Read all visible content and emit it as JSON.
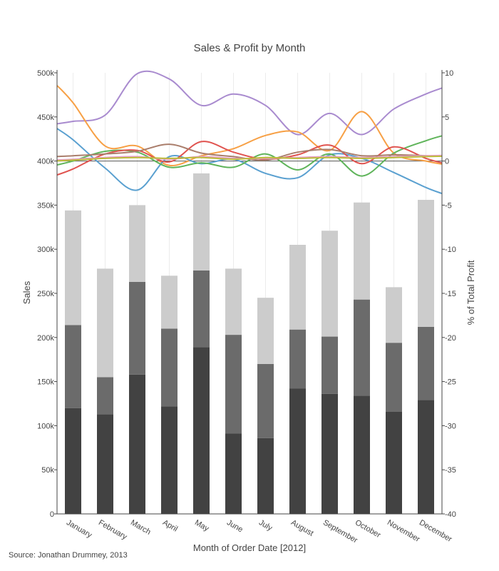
{
  "chart_data": {
    "type": "bar",
    "title": "Sales & Profit by Month",
    "xlabel": "Month of Order Date [2012]",
    "ylabel": "Sales",
    "y2label": "% of Total Profit",
    "ylim": [
      0,
      500000
    ],
    "y2lim": [
      -40,
      10
    ],
    "yticks": [
      "0",
      "50k",
      "100k",
      "150k",
      "200k",
      "250k",
      "300k",
      "350k",
      "400k",
      "450k",
      "500k"
    ],
    "y2ticks": [
      "-40",
      "-35",
      "-30",
      "-25",
      "-20",
      "-15",
      "-10",
      "-5",
      "0",
      "5",
      "10"
    ],
    "categories": [
      "January",
      "February",
      "March",
      "April",
      "May",
      "June",
      "July",
      "August",
      "September",
      "October",
      "November",
      "December"
    ],
    "bar_series": [
      {
        "color": "#424242",
        "values": [
          120000,
          113000,
          158000,
          122000,
          189000,
          91000,
          86000,
          142000,
          136000,
          134000,
          116000,
          129000
        ]
      },
      {
        "color": "#6b6b6b",
        "values": [
          94000,
          42000,
          105000,
          88000,
          87000,
          112000,
          84000,
          67000,
          65000,
          109000,
          78000,
          83000
        ]
      },
      {
        "color": "#cccccc",
        "values": [
          130000,
          123000,
          87000,
          60000,
          110000,
          75000,
          75000,
          96000,
          120000,
          110000,
          63000,
          144000
        ]
      }
    ],
    "line_series": [
      {
        "color": "#a98bcf",
        "values": [
          4.5,
          5.2,
          9.9,
          9.3,
          6.3,
          7.6,
          6.3,
          3.0,
          5.4,
          3.0,
          5.9,
          7.6
        ]
      },
      {
        "color": "#f7a045",
        "values": [
          6.6,
          1.7,
          1.7,
          -0.5,
          0.6,
          1.4,
          2.9,
          3.3,
          1.2,
          5.6,
          0.9,
          0.0
        ]
      },
      {
        "color": "#5aa0d0",
        "values": [
          2.4,
          -0.8,
          -3.3,
          0.5,
          -0.3,
          0.2,
          -1.4,
          -1.9,
          0.7,
          0.3,
          -1.3,
          -3.0
        ]
      },
      {
        "color": "#5fb45a",
        "values": [
          0.0,
          1.1,
          1.0,
          -0.7,
          -0.2,
          -0.7,
          0.8,
          -1.0,
          0.8,
          -1.7,
          0.9,
          2.3
        ]
      },
      {
        "color": "#e0534f",
        "values": [
          -0.9,
          0.8,
          1.2,
          -0.1,
          2.2,
          1.0,
          0.2,
          0.7,
          1.8,
          -0.3,
          1.6,
          0.3
        ]
      },
      {
        "color": "#aa7e6c",
        "values": [
          0.6,
          0.8,
          1.1,
          1.9,
          0.9,
          0.5,
          0.1,
          1.0,
          1.3,
          0.6,
          0.7,
          0.6
        ]
      },
      {
        "color": "#e8a0c8",
        "values": [
          0.2,
          0.4,
          0.5,
          0.2,
          0.5,
          0.3,
          0.3,
          0.4,
          0.5,
          0.4,
          0.5,
          0.6
        ]
      },
      {
        "color": "#bcbd3a",
        "values": [
          0.1,
          0.3,
          0.4,
          0.3,
          0.4,
          0.2,
          0.4,
          0.3,
          0.4,
          0.3,
          0.4,
          0.5
        ]
      }
    ],
    "grid": "vertical",
    "legend": "none",
    "source": "Source: Jonathan Drummey, 2013"
  }
}
